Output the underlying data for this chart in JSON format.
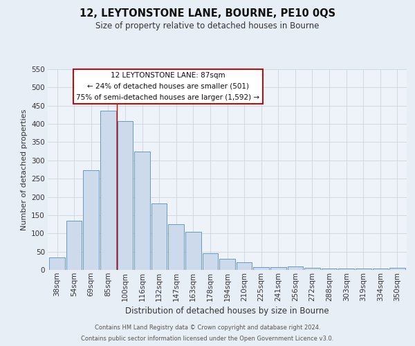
{
  "title": "12, LEYTONSTONE LANE, BOURNE, PE10 0QS",
  "subtitle": "Size of property relative to detached houses in Bourne",
  "xlabel": "Distribution of detached houses by size in Bourne",
  "ylabel": "Number of detached properties",
  "bar_labels": [
    "38sqm",
    "54sqm",
    "69sqm",
    "85sqm",
    "100sqm",
    "116sqm",
    "132sqm",
    "147sqm",
    "163sqm",
    "178sqm",
    "194sqm",
    "210sqm",
    "225sqm",
    "241sqm",
    "256sqm",
    "272sqm",
    "288sqm",
    "303sqm",
    "319sqm",
    "334sqm",
    "350sqm"
  ],
  "bar_values": [
    35,
    135,
    273,
    437,
    407,
    325,
    182,
    126,
    104,
    46,
    30,
    21,
    8,
    7,
    10,
    5,
    4,
    4,
    3,
    4,
    5
  ],
  "bar_color": "#ccdaeb",
  "bar_edge_color": "#6899c4",
  "vline_color": "#cc0000",
  "vline_x_index": 3,
  "ylim": [
    0,
    550
  ],
  "yticks": [
    0,
    50,
    100,
    150,
    200,
    250,
    300,
    350,
    400,
    450,
    500,
    550
  ],
  "annotation_title": "12 LEYTONSTONE LANE: 87sqm",
  "annotation_line1": "← 24% of detached houses are smaller (501)",
  "annotation_line2": "75% of semi-detached houses are larger (1,592) →",
  "annotation_box_facecolor": "#ffffff",
  "annotation_box_edgecolor": "#cc0000",
  "footer1": "Contains HM Land Registry data © Crown copyright and database right 2024.",
  "footer2": "Contains public sector information licensed under the Open Government Licence v3.0.",
  "bg_color": "#e8eef5",
  "plot_bg_color": "#eef3f9",
  "grid_color": "#c5cfd9",
  "title_fontsize": 10.5,
  "subtitle_fontsize": 8.5,
  "ylabel_fontsize": 8,
  "xlabel_fontsize": 8.5,
  "tick_labelsize": 7.5,
  "annotation_fontsize": 7.5,
  "footer_fontsize": 6
}
